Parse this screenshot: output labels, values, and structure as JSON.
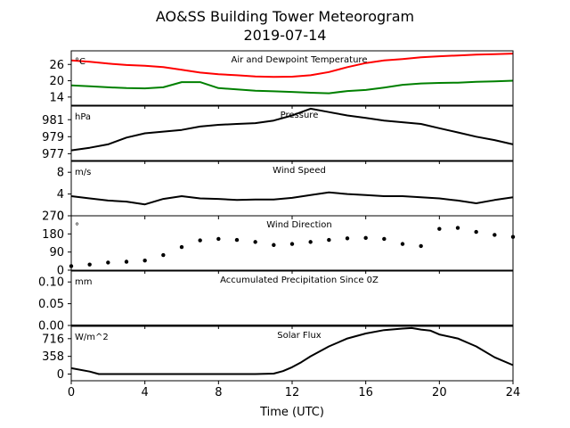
{
  "figure": {
    "title": "AO&SS Building Tower Meteorogram",
    "subtitle": "2019-07-14",
    "xlabel": "Time (UTC)"
  },
  "chart_data": [
    {
      "type": "line",
      "title": "Air and Dewpoint Temperature",
      "unit": "°C",
      "xlim": [
        0,
        24
      ],
      "ylim": [
        11,
        31
      ],
      "yticks": [
        14,
        20,
        26
      ],
      "xticks": [
        0,
        4,
        8,
        12,
        16,
        20,
        24
      ],
      "series": [
        {
          "color": "#ff0000",
          "x": [
            0,
            1,
            2,
            3,
            4,
            5,
            6,
            7,
            8,
            9,
            10,
            11,
            12,
            13,
            14,
            15,
            16,
            17,
            18,
            19,
            20,
            21,
            22,
            23,
            24
          ],
          "y": [
            27.5,
            27,
            26.3,
            25.8,
            25.5,
            25,
            24,
            23,
            22.4,
            22,
            21.6,
            21.4,
            21.5,
            22,
            23.2,
            25,
            26.5,
            27.5,
            28,
            28.6,
            29,
            29.3,
            29.6,
            29.8,
            30
          ]
        },
        {
          "color": "#008000",
          "x": [
            0,
            1,
            2,
            3,
            4,
            5,
            6,
            7,
            8,
            9,
            10,
            11,
            12,
            13,
            14,
            15,
            16,
            17,
            18,
            19,
            20,
            21,
            22,
            23,
            24
          ],
          "y": [
            18.3,
            18,
            17.6,
            17.3,
            17.2,
            17.6,
            19.5,
            19.5,
            17.3,
            16.8,
            16.3,
            16.1,
            15.9,
            15.6,
            15.4,
            16.2,
            16.6,
            17.5,
            18.5,
            19,
            19.2,
            19.3,
            19.6,
            19.8,
            20
          ]
        }
      ]
    },
    {
      "type": "line",
      "title": "Pressure",
      "unit": "hPa",
      "xlim": [
        0,
        24
      ],
      "ylim": [
        976.2,
        982.6
      ],
      "yticks": [
        977,
        979,
        981
      ],
      "xticks": [
        0,
        4,
        8,
        12,
        16,
        20,
        24
      ],
      "series": [
        {
          "color": "#000000",
          "x": [
            0,
            1,
            2,
            3,
            4,
            5,
            6,
            7,
            8,
            9,
            10,
            11,
            12,
            13,
            14,
            15,
            16,
            17,
            18,
            19,
            20,
            21,
            22,
            23,
            24
          ],
          "y": [
            977.4,
            977.7,
            978.1,
            978.9,
            979.4,
            979.6,
            979.8,
            980.2,
            980.4,
            980.5,
            980.6,
            980.9,
            981.5,
            982.3,
            981.9,
            981.5,
            981.2,
            980.9,
            980.7,
            980.5,
            980.0,
            979.5,
            979.0,
            978.6,
            978.1
          ]
        }
      ]
    },
    {
      "type": "line",
      "title": "Wind Speed",
      "unit": "m/s",
      "xlim": [
        0,
        24
      ],
      "ylim": [
        0,
        10
      ],
      "yticks": [
        0,
        4,
        8
      ],
      "xticks": [
        0,
        4,
        8,
        12,
        16,
        20,
        24
      ],
      "series": [
        {
          "color": "#000000",
          "x": [
            0,
            1,
            2,
            3,
            4,
            5,
            6,
            7,
            8,
            9,
            10,
            11,
            12,
            13,
            14,
            15,
            16,
            17,
            18,
            19,
            20,
            21,
            22,
            23,
            24
          ],
          "y": [
            3.6,
            3.2,
            2.8,
            2.6,
            2.1,
            3.1,
            3.6,
            3.2,
            3.1,
            2.9,
            3.0,
            3.0,
            3.3,
            3.8,
            4.3,
            4.0,
            3.8,
            3.6,
            3.6,
            3.4,
            3.2,
            2.8,
            2.3,
            2.9,
            3.4
          ]
        }
      ]
    },
    {
      "type": "scatter",
      "title": "Wind Direction",
      "unit": "°",
      "xlim": [
        0,
        24
      ],
      "ylim": [
        0,
        270
      ],
      "yticks": [
        0,
        90,
        180,
        270
      ],
      "xticks": [
        0,
        4,
        8,
        12,
        16,
        20,
        24
      ],
      "series": [
        {
          "color": "#000000",
          "x": [
            0,
            1,
            2,
            3,
            4,
            5,
            6,
            7,
            8,
            9,
            10,
            11,
            12,
            13,
            14,
            15,
            16,
            17,
            18,
            19,
            20,
            21,
            22,
            23,
            24
          ],
          "y": [
            20,
            28,
            38,
            42,
            48,
            75,
            115,
            148,
            155,
            150,
            140,
            125,
            130,
            140,
            150,
            158,
            160,
            155,
            130,
            120,
            205,
            210,
            190,
            175,
            165
          ]
        }
      ]
    },
    {
      "type": "line",
      "title": "Accumulated Precipitation Since 0Z",
      "unit": "mm",
      "xlim": [
        0,
        24
      ],
      "ylim": [
        0,
        0.125
      ],
      "yticks": [
        0.0,
        0.05,
        0.1
      ],
      "ytick_labels": [
        "0.00",
        "0.05",
        "0.10"
      ],
      "xticks": [
        0,
        4,
        8,
        12,
        16,
        20,
        24
      ],
      "series": [
        {
          "color": "#000000",
          "x": [
            0,
            24
          ],
          "y": [
            0,
            0
          ]
        }
      ]
    },
    {
      "type": "line",
      "title": "Solar Flux",
      "unit": "W/m^2",
      "xlim": [
        0,
        24
      ],
      "ylim": [
        -135,
        965
      ],
      "yticks": [
        0,
        358,
        716
      ],
      "xticks": [
        0,
        4,
        8,
        12,
        16,
        20,
        24
      ],
      "series": [
        {
          "color": "#000000",
          "x": [
            0,
            1,
            1.5,
            2,
            4,
            6,
            8,
            10,
            11,
            11.5,
            12,
            12.5,
            13,
            14,
            15,
            16,
            17,
            18,
            18.5,
            19,
            19.5,
            20,
            21,
            22,
            23,
            24
          ],
          "y": [
            120,
            50,
            0,
            0,
            0,
            0,
            0,
            0,
            10,
            60,
            140,
            240,
            360,
            560,
            720,
            820,
            890,
            920,
            930,
            900,
            880,
            800,
            720,
            560,
            340,
            180
          ]
        }
      ]
    }
  ]
}
